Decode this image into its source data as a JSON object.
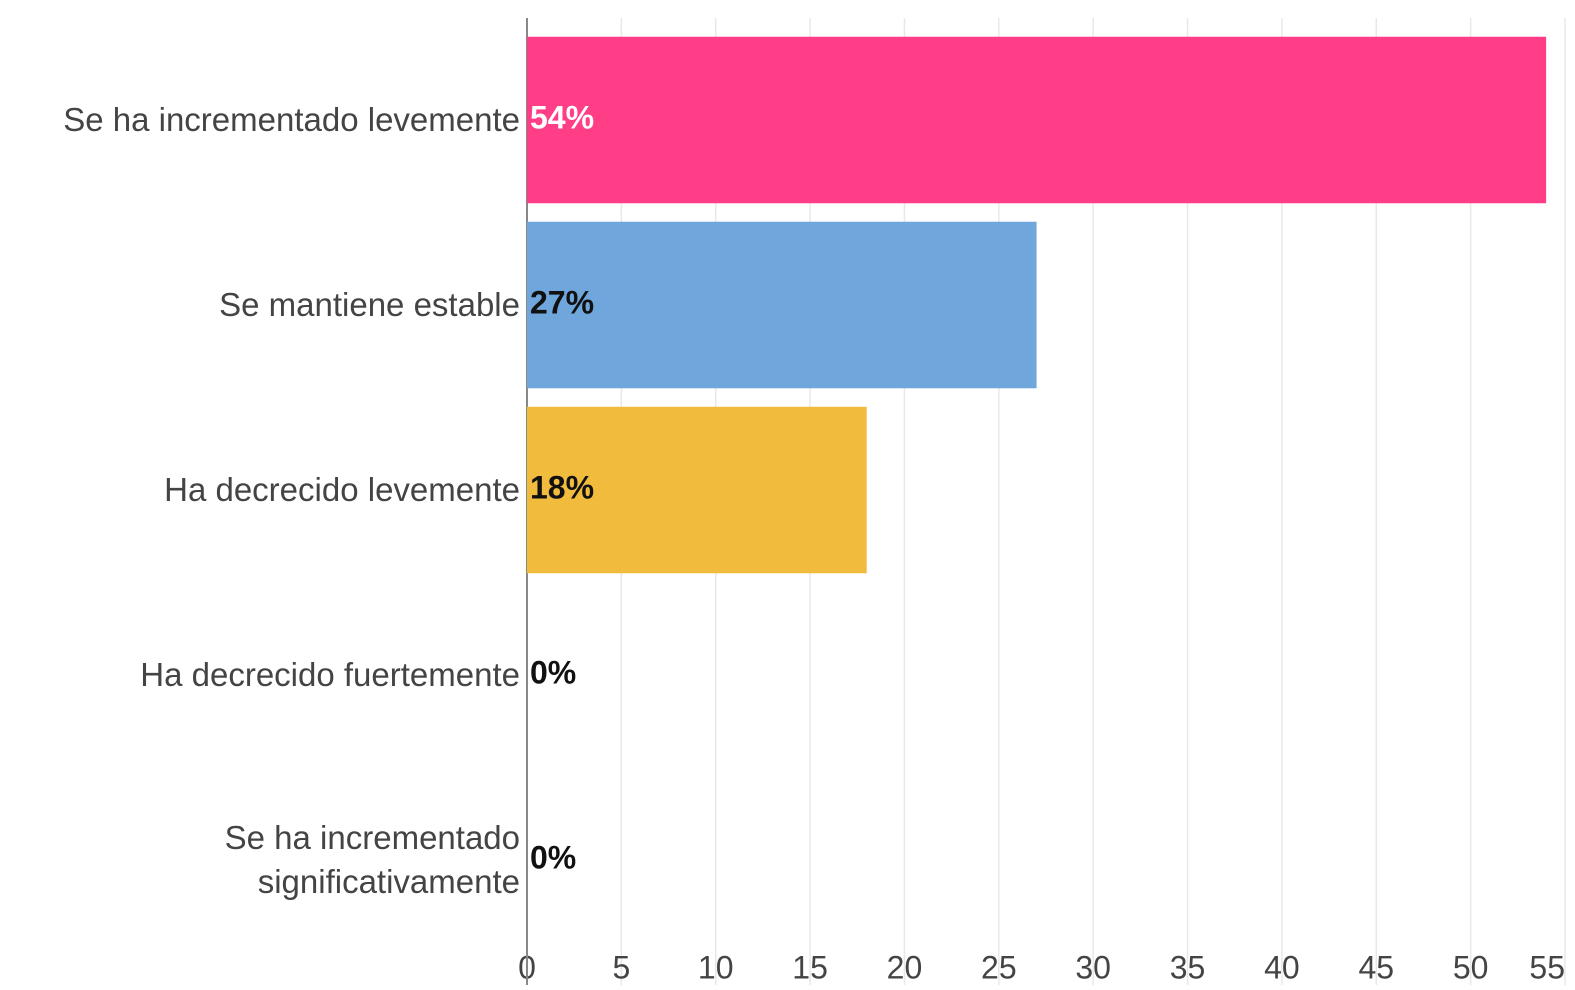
{
  "chart_data": {
    "type": "barh",
    "categories": [
      "Se ha incrementado levemente",
      "Se mantiene estable",
      "Ha decrecido levemente",
      "Ha decrecido fuertemente",
      "Se ha incrementado significativamente"
    ],
    "values": [
      54,
      27,
      18,
      0,
      0
    ],
    "value_labels": [
      "54%",
      "27%",
      "18%",
      "0%",
      "0%"
    ],
    "colors": [
      "#ff3e87",
      "#6fa6db",
      "#f1bb3e",
      "#999999",
      "#999999"
    ],
    "value_label_colors": [
      "#ffffff",
      "#111111",
      "#111111",
      "#111111",
      "#111111"
    ],
    "xlim": [
      0,
      55
    ],
    "xticks": [
      0,
      5,
      10,
      15,
      20,
      25,
      30,
      35,
      40,
      45,
      50,
      55
    ],
    "grid": true
  }
}
